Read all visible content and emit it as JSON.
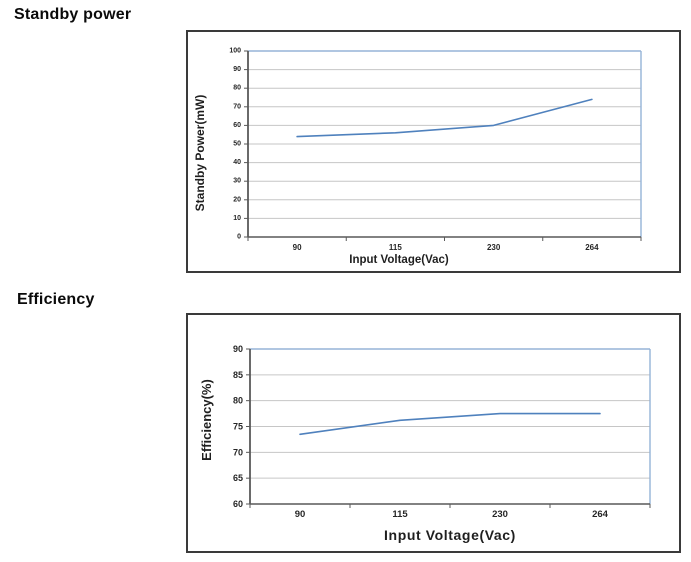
{
  "page": {
    "background": "#ffffff"
  },
  "sections": [
    {
      "heading": "Standby power"
    },
    {
      "heading": "Efficiency"
    }
  ],
  "chart_data": [
    {
      "type": "line",
      "title": "Standby power",
      "categories": [
        "90",
        "115",
        "230",
        "264"
      ],
      "series": [
        {
          "name": "Standby Power",
          "values": [
            54,
            56,
            60,
            74
          ]
        }
      ],
      "xlabel": "Input Voltage(Vac)",
      "ylabel": "Standby Power(mW)",
      "ylim": [
        0,
        100
      ],
      "ytick_step": 10,
      "grid": true,
      "legend_position": "none",
      "colors": {
        "series": "#4F81BD",
        "gridline": "#C6C6C6",
        "plot_border": "#95B3D7",
        "axis": "#595959",
        "tick_label": "#262626",
        "axis_title": "#1F1F1F"
      }
    },
    {
      "type": "line",
      "title": "Efficiency",
      "categories": [
        "90",
        "115",
        "230",
        "264"
      ],
      "series": [
        {
          "name": "Efficiency",
          "values": [
            73.5,
            76.2,
            77.5,
            77.5
          ]
        }
      ],
      "xlabel": "Input Voltage(Vac)",
      "ylabel": "Efficiency(%)",
      "ylim": [
        60,
        90
      ],
      "ytick_step": 5,
      "grid": true,
      "legend_position": "none",
      "colors": {
        "series": "#4F81BD",
        "gridline": "#C6C6C6",
        "plot_border": "#95B3D7",
        "axis": "#595959",
        "tick_label": "#262626",
        "axis_title": "#1F1F1F"
      }
    }
  ]
}
